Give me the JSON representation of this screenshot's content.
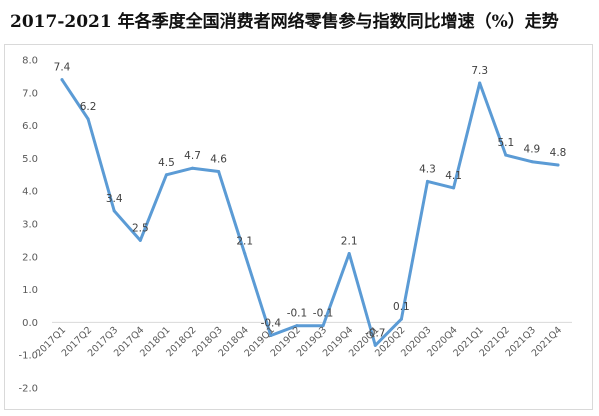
{
  "chart_data": {
    "type": "line",
    "title": "2017-2021 年各季度全国消费者网络零售参与指数同比增速（%）走势",
    "xlabel": "",
    "ylabel": "",
    "categories": [
      "2017Q1",
      "2017Q2",
      "2017Q3",
      "2017Q4",
      "2018Q1",
      "2018Q2",
      "2018Q3",
      "2018Q4",
      "2019Q1",
      "2019Q2",
      "2019Q3",
      "2019Q4",
      "2020Q1",
      "2020Q2",
      "2020Q3",
      "2020Q4",
      "2021Q1",
      "2021Q2",
      "2021Q3",
      "2021Q4"
    ],
    "series": [
      {
        "values": [
          7.4,
          6.2,
          3.4,
          2.5,
          4.5,
          4.7,
          4.6,
          2.1,
          -0.4,
          -0.1,
          -0.1,
          2.1,
          -0.7,
          0.1,
          4.3,
          4.1,
          7.3,
          5.1,
          4.9,
          4.8
        ],
        "color": "#5b9bd5"
      }
    ],
    "ylim": [
      -2.0,
      8.0
    ],
    "yticks": [
      "-2.0",
      "-1.0",
      "0.0",
      "1.0",
      "2.0",
      "3.0",
      "4.0",
      "5.0",
      "6.0",
      "7.0",
      "8.0"
    ],
    "grid": false,
    "legend": "none"
  }
}
